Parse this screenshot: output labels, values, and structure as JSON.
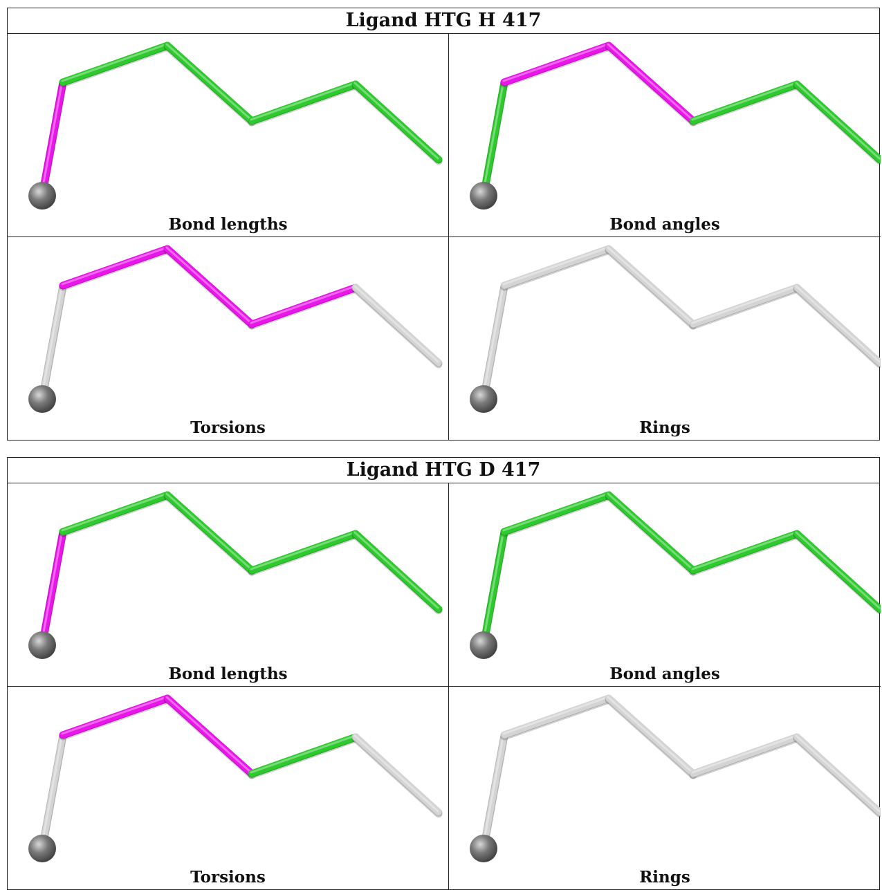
{
  "colors": {
    "outlier": "#e816e8",
    "ok": "#2ec92e",
    "not_applicable": "#d4d4d4",
    "atom": "#7a7a7a"
  },
  "atoms": [
    {
      "element": "metal",
      "ball": true
    },
    {
      "element": "C"
    },
    {
      "element": "C"
    },
    {
      "element": "C"
    },
    {
      "element": "C"
    },
    {
      "element": "C"
    }
  ],
  "ligands": [
    {
      "title": "Ligand HTG H 417",
      "panels": [
        {
          "label": "Bond lengths",
          "bond_colors": [
            "outlier",
            "ok",
            "ok",
            "ok",
            "ok"
          ]
        },
        {
          "label": "Bond angles",
          "bond_colors": [
            "ok",
            "outlier",
            "outlier",
            "ok",
            "ok"
          ]
        },
        {
          "label": "Torsions",
          "bond_colors": [
            "not_applicable",
            "outlier",
            "outlier",
            "outlier",
            "not_applicable"
          ]
        },
        {
          "label": "Rings",
          "bond_colors": [
            "not_applicable",
            "not_applicable",
            "not_applicable",
            "not_applicable",
            "not_applicable"
          ]
        }
      ]
    },
    {
      "title": "Ligand HTG D 417",
      "panels": [
        {
          "label": "Bond lengths",
          "bond_colors": [
            "outlier",
            "ok",
            "ok",
            "ok",
            "ok"
          ]
        },
        {
          "label": "Bond angles",
          "bond_colors": [
            "ok",
            "ok",
            "ok",
            "ok",
            "ok"
          ]
        },
        {
          "label": "Torsions",
          "bond_colors": [
            "not_applicable",
            "outlier",
            "outlier",
            "ok",
            "not_applicable"
          ]
        },
        {
          "label": "Rings",
          "bond_colors": [
            "not_applicable",
            "not_applicable",
            "not_applicable",
            "not_applicable",
            "not_applicable"
          ]
        }
      ]
    }
  ]
}
